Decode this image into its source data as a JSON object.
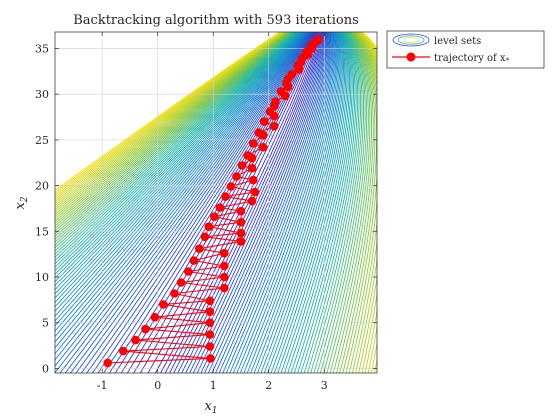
{
  "chart_data": {
    "type": "line",
    "title": "Backtracking algorithm with 593 iterations",
    "xlabel": "x",
    "xlabel_sub": "1",
    "ylabel": "x",
    "ylabel_sub": "2",
    "xlim": [
      -1.85,
      3.95
    ],
    "ylim": [
      -0.5,
      36.8
    ],
    "xticks": [
      -1,
      0,
      1,
      2,
      3
    ],
    "xtick_labels": [
      "-1",
      "0",
      "1",
      "2",
      "3"
    ],
    "yticks": [
      0,
      5,
      10,
      15,
      20,
      25,
      30,
      35
    ],
    "ytick_labels": [
      "0",
      "5",
      "10",
      "15",
      "20",
      "25",
      "30",
      "35"
    ],
    "grid": true,
    "legend": {
      "position": "outside-top-right",
      "entries": [
        {
          "label": "level sets"
        },
        {
          "label": "trajectory of x",
          "sub": "*"
        }
      ]
    },
    "series": [
      {
        "name": "trajectory of x*",
        "color": "#ff0000",
        "marker": "circle",
        "x": [
          -0.9,
          0.95,
          -0.62,
          0.94,
          -0.4,
          0.94,
          -0.22,
          0.94,
          -0.05,
          0.94,
          0.1,
          0.94,
          0.3,
          1.2,
          0.42,
          1.2,
          0.55,
          1.2,
          0.65,
          1.2,
          0.75,
          1.5,
          0.85,
          1.5,
          0.92,
          1.5,
          1.02,
          1.5,
          1.12,
          1.7,
          1.22,
          1.75,
          1.32,
          1.72,
          1.42,
          1.7,
          1.52,
          1.7,
          1.62,
          1.9,
          1.72,
          1.9,
          1.82,
          2.1,
          1.92,
          2.1,
          2.02,
          2.1,
          2.12,
          2.3,
          2.22,
          2.35,
          2.32,
          2.35,
          2.42,
          2.55,
          2.52,
          2.58,
          2.6,
          2.7,
          2.68,
          2.78,
          2.76,
          2.82,
          2.85,
          2.9
        ],
        "y": [
          0.6,
          1.1,
          1.9,
          2.4,
          3.1,
          3.7,
          4.3,
          5.0,
          5.6,
          6.2,
          7.0,
          7.4,
          8.2,
          8.8,
          9.4,
          10.0,
          10.6,
          11.2,
          11.8,
          12.6,
          13.1,
          13.9,
          14.4,
          14.8,
          15.5,
          16.0,
          16.6,
          17.2,
          17.6,
          18.3,
          18.8,
          19.3,
          19.9,
          20.6,
          21.0,
          21.9,
          22.2,
          23.0,
          23.3,
          24.2,
          24.6,
          25.5,
          25.8,
          26.5,
          27.0,
          27.6,
          28.1,
          28.7,
          29.2,
          29.8,
          30.3,
          30.8,
          31.2,
          31.7,
          32.2,
          32.7,
          33.1,
          33.5,
          33.9,
          34.3,
          34.6,
          35.0,
          35.3,
          35.6,
          35.8,
          36.0
        ]
      }
    ]
  }
}
